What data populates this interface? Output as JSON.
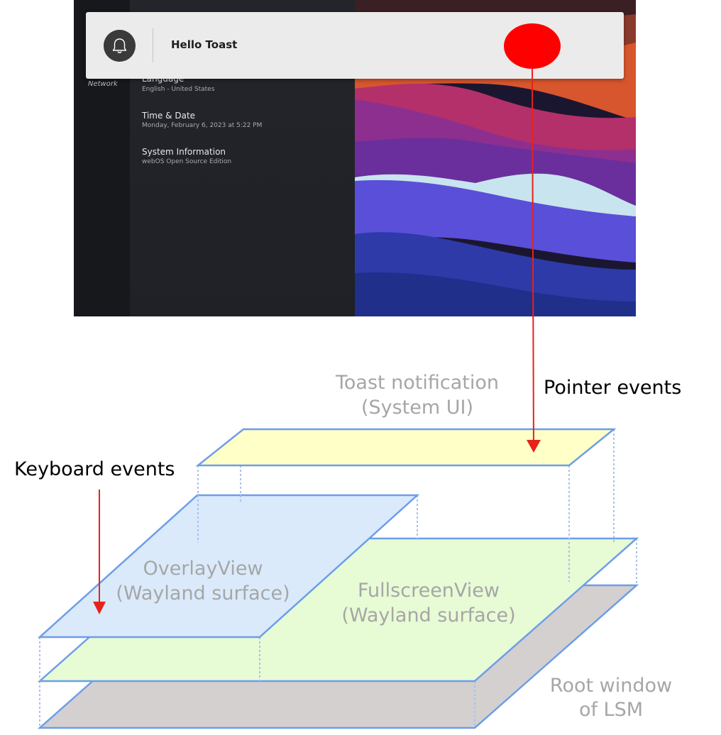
{
  "screenshot": {
    "nav": {
      "network": "Network"
    },
    "settings": [
      {
        "title": "Language",
        "subtitle": "English - United States"
      },
      {
        "title": "Time & Date",
        "subtitle": "Monday, February 6, 2023 at 5:22 PM"
      },
      {
        "title": "System Information",
        "subtitle": "webOS Open Source Edition"
      }
    ],
    "toast": {
      "message": "Hello Toast",
      "icon": "bell-icon"
    }
  },
  "diagram": {
    "labels": {
      "toast_layer": [
        "Toast notification",
        "(System UI)"
      ],
      "overlay_layer": [
        "OverlayView",
        "(Wayland surface)"
      ],
      "fullscreen_layer": [
        "FullscreenView",
        "(Wayland surface)"
      ],
      "root_layer": [
        "Root window",
        "of LSM"
      ],
      "pointer_events": "Pointer events",
      "keyboard_events": "Keyboard events"
    },
    "colors": {
      "toast_fill": "#ffffc8",
      "overlay_fill": "#daeafb",
      "fullscreen_fill": "#e7fbd5",
      "root_fill": "#d4d0d0",
      "edge": "#6d9ee8",
      "arrow": "#e8221b",
      "pointer_marker": "#ff0000",
      "label_gray": "#a6a6a6"
    }
  }
}
